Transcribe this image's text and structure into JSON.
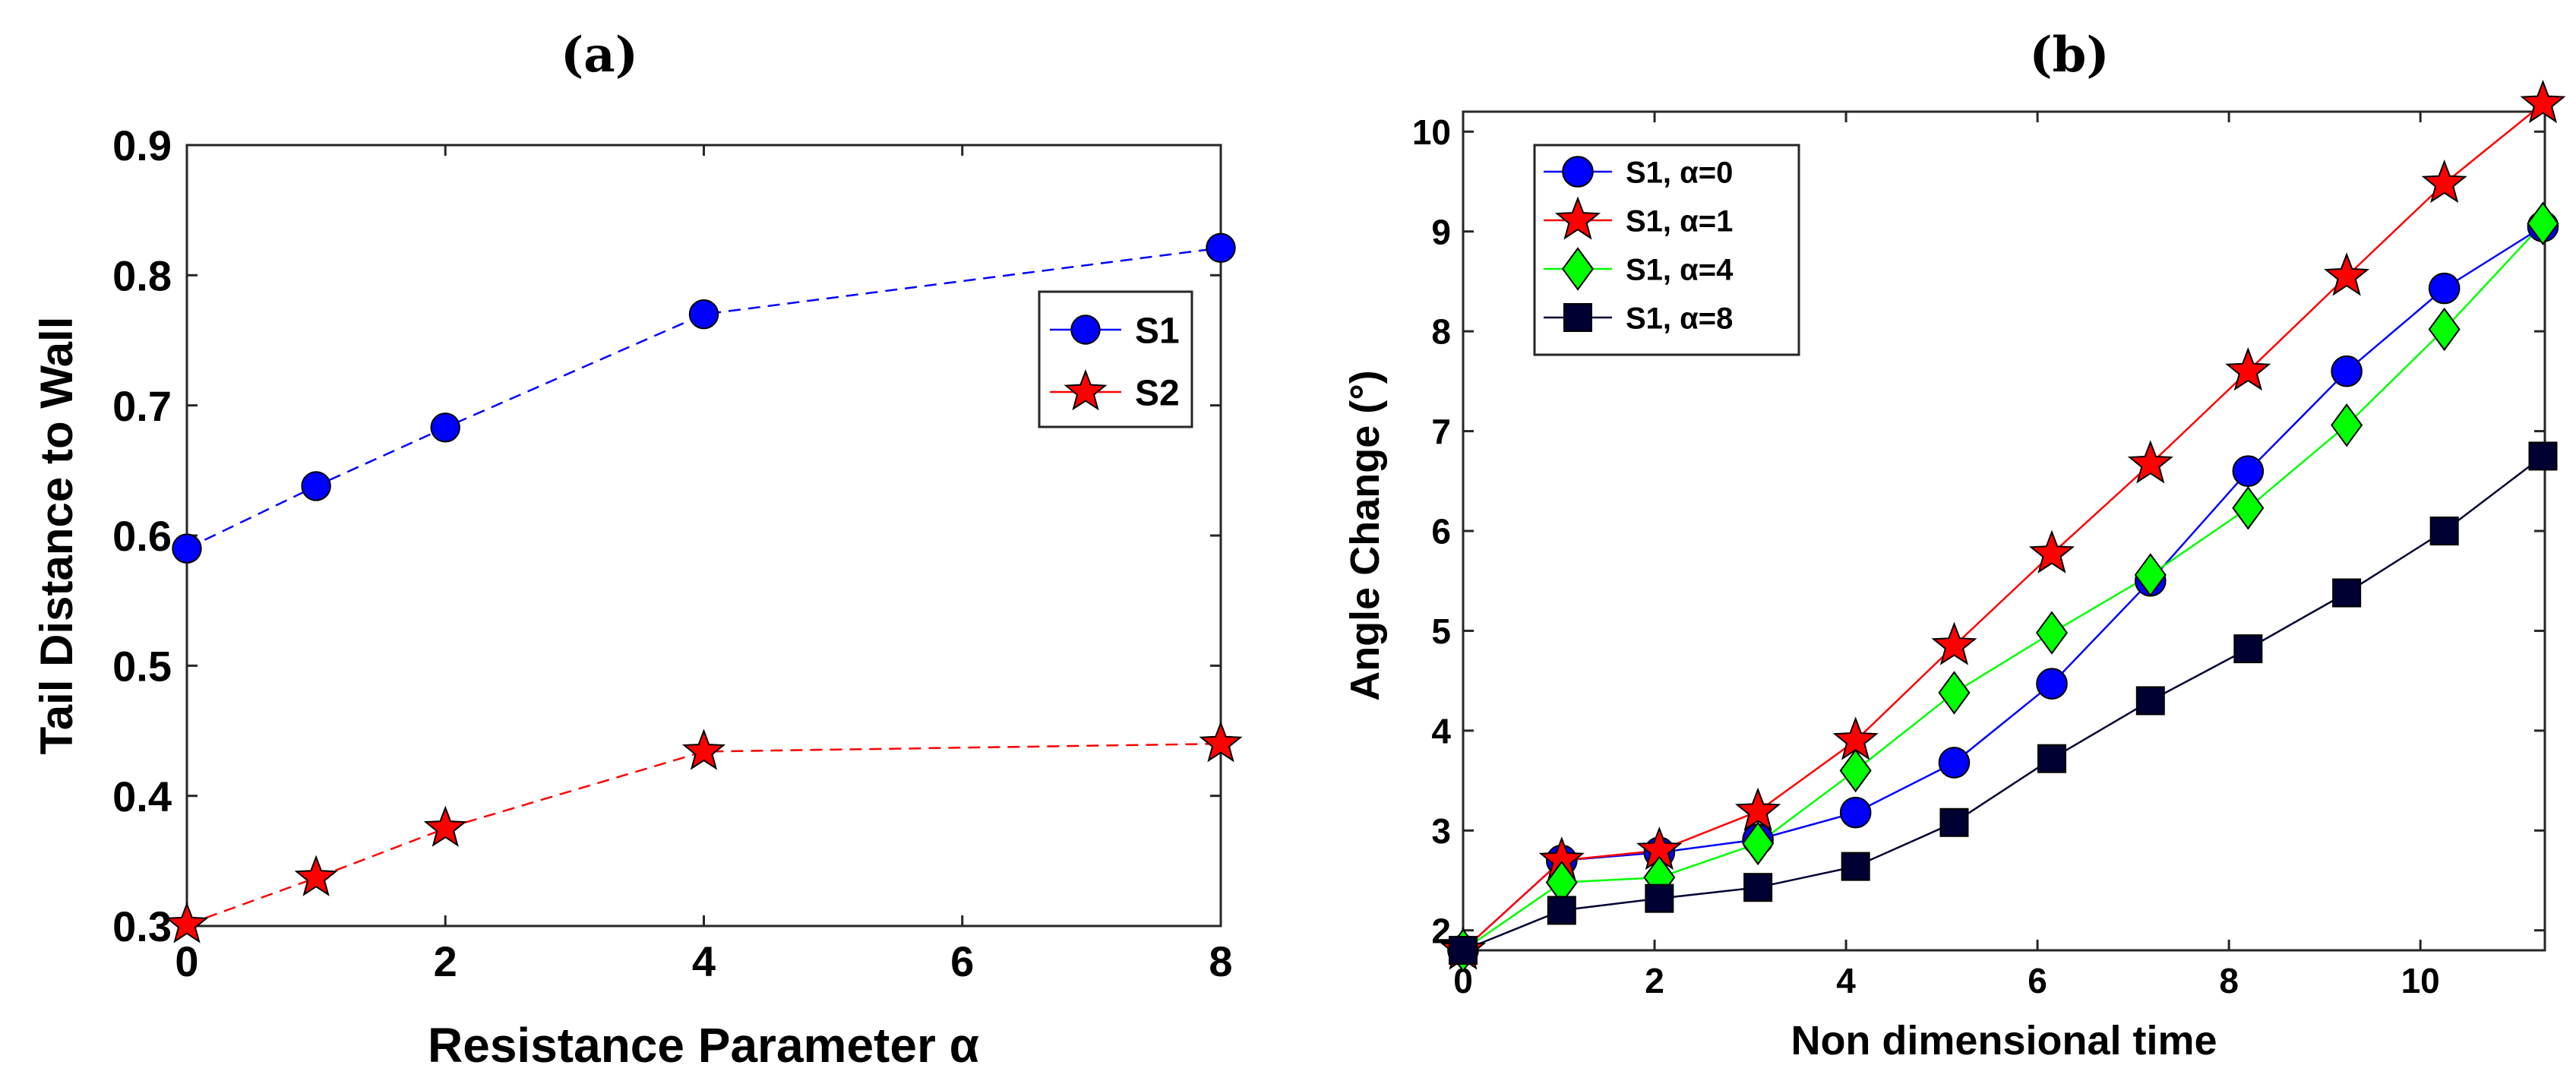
{
  "chart_data": [
    {
      "panel_label": "(a)",
      "type": "line",
      "xlabel": "Resistance Parameter α",
      "ylabel": "Tail Distance to Wall",
      "xlim": [
        0,
        8
      ],
      "ylim": [
        0.3,
        0.9
      ],
      "xticks": [
        "0",
        "2",
        "4",
        "6",
        "8"
      ],
      "yticks": [
        "0.3",
        "0.4",
        "0.5",
        "0.6",
        "0.7",
        "0.8",
        "0.9"
      ],
      "grid": false,
      "legend_position": "top-right",
      "series": [
        {
          "name": "S1",
          "marker": "circle",
          "color": "#0000ff",
          "line": "dashed",
          "x": [
            0,
            1,
            2,
            4,
            8
          ],
          "y": [
            0.59,
            0.638,
            0.683,
            0.77,
            0.821
          ]
        },
        {
          "name": "S2",
          "marker": "star",
          "color": "#ff0000",
          "line": "dashed",
          "x": [
            0,
            1,
            2,
            4,
            8
          ],
          "y": [
            0.301,
            0.337,
            0.375,
            0.434,
            0.44
          ]
        }
      ]
    },
    {
      "panel_label": "(b)",
      "type": "line",
      "xlabel": "Non dimensional time",
      "ylabel": "Angle Change (°)",
      "xlim": [
        0,
        11.3
      ],
      "ylim": [
        1.8,
        10.2
      ],
      "xticks": [
        "0",
        "2",
        "4",
        "6",
        "8",
        "10"
      ],
      "yticks": [
        "2",
        "3",
        "4",
        "5",
        "6",
        "7",
        "8",
        "9",
        "10"
      ],
      "grid": false,
      "legend_position": "top-left",
      "series": [
        {
          "name": "S1, α=0",
          "marker": "circle",
          "color": "#0000ff",
          "line": "solid",
          "x": [
            0,
            1.03,
            2.05,
            3.08,
            4.1,
            5.13,
            6.15,
            7.18,
            8.2,
            9.23,
            10.25,
            11.28
          ],
          "y": [
            1.8,
            2.7,
            2.78,
            2.91,
            3.18,
            3.68,
            4.47,
            5.5,
            6.6,
            7.6,
            8.43,
            9.05
          ]
        },
        {
          "name": "S1, α=1",
          "marker": "star",
          "color": "#ff0000",
          "line": "solid",
          "x": [
            0,
            1.03,
            2.05,
            3.08,
            4.1,
            5.13,
            6.15,
            7.18,
            8.2,
            9.23,
            10.25,
            11.28
          ],
          "y": [
            1.8,
            2.7,
            2.8,
            3.19,
            3.9,
            4.85,
            5.77,
            6.67,
            7.6,
            8.55,
            9.48,
            10.28
          ]
        },
        {
          "name": "S1, α=4",
          "marker": "diamond",
          "color": "#00ff00",
          "line": "solid",
          "x": [
            0,
            1.03,
            2.05,
            3.08,
            4.1,
            5.13,
            6.15,
            7.18,
            8.2,
            9.23,
            10.25,
            11.28
          ],
          "y": [
            1.8,
            2.48,
            2.53,
            2.87,
            3.6,
            4.38,
            4.98,
            5.56,
            6.23,
            7.06,
            8.02,
            9.08
          ]
        },
        {
          "name": "S1, α=8",
          "marker": "square",
          "color": "#000033",
          "line": "solid",
          "x": [
            0,
            1.03,
            2.05,
            3.08,
            4.1,
            5.13,
            6.15,
            7.18,
            8.2,
            9.23,
            10.25,
            11.28
          ],
          "y": [
            1.8,
            2.2,
            2.32,
            2.43,
            2.64,
            3.08,
            3.72,
            4.3,
            4.82,
            5.38,
            6.0,
            6.75
          ]
        }
      ]
    }
  ]
}
